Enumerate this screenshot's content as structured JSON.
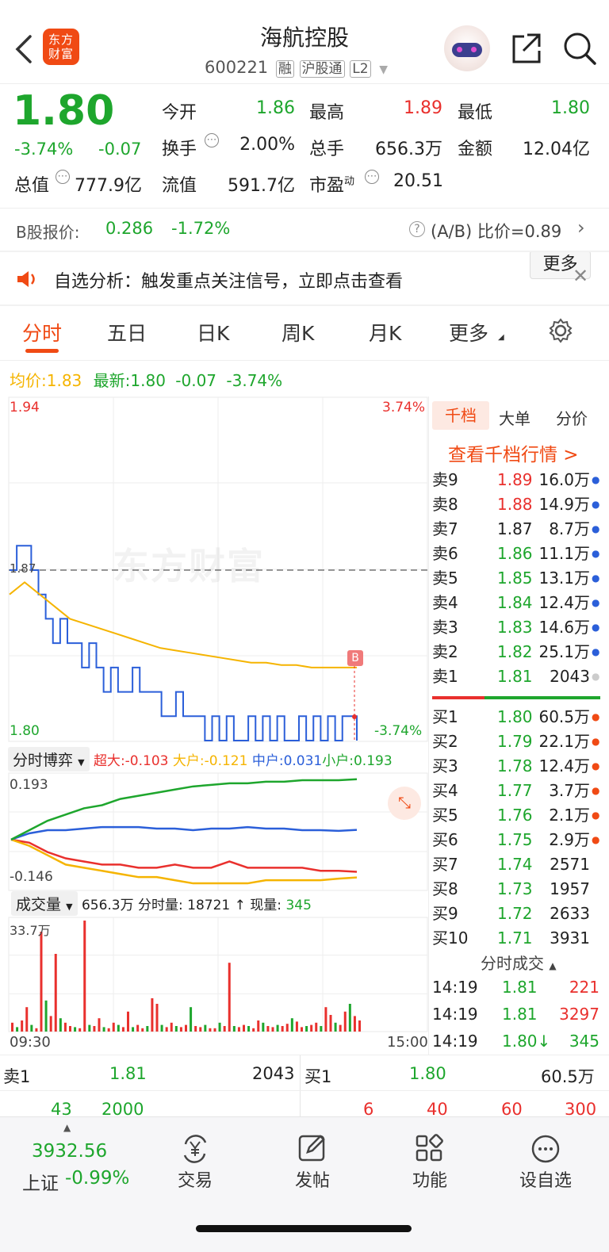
{
  "header": {
    "logo_text": "东方财富",
    "stock_name": "海航控股",
    "stock_code": "600221",
    "tags": [
      "融",
      "沪股通",
      "L2"
    ]
  },
  "quote": {
    "price": "1.80",
    "change_pct": "-3.74%",
    "change": "-0.07",
    "fields": [
      {
        "label": "今开",
        "value": "1.86",
        "color": "green"
      },
      {
        "label": "最高",
        "value": "1.89",
        "color": "red"
      },
      {
        "label": "最低",
        "value": "1.80",
        "color": "green"
      },
      {
        "label": "换手",
        "value": "2.00%",
        "color": "black"
      },
      {
        "label": "总手",
        "value": "656.3万",
        "color": "black"
      },
      {
        "label": "金额",
        "value": "12.04亿",
        "color": "black"
      },
      {
        "label": "总值",
        "value": "777.9亿",
        "color": "black"
      },
      {
        "label": "流值",
        "value": "591.7亿",
        "color": "black"
      },
      {
        "label": "市盈",
        "value": "20.51",
        "color": "black"
      }
    ],
    "pe_sup": "动",
    "more_label": "更多"
  },
  "b_share": {
    "label": "B股报价:",
    "price": "0.286",
    "change": "-1.72%",
    "ratio": "(A/B) 比价=0.89"
  },
  "notice": {
    "text": "自选分析：触发重点关注信号，立即点击查看"
  },
  "tabs": [
    "分时",
    "五日",
    "日K",
    "周K",
    "月K",
    "更多"
  ],
  "active_tab": 0,
  "summary": {
    "avg_label": "均价:",
    "avg": "1.83",
    "latest_label": "最新:",
    "latest": "1.80",
    "change": "-0.07",
    "change_pct": "-3.74%"
  },
  "chart_data": [
    {
      "type": "line",
      "title": "分时",
      "y_left_top": "1.94",
      "y_left_bottom": "1.80",
      "y_right_top": "3.74%",
      "y_right_bottom": "-3.74%",
      "ref_label": "1.87",
      "watermark": "东方财富",
      "marker": "B",
      "series": [
        {
          "name": "价格",
          "color": "#2b5fd9",
          "values": [
            1.87,
            1.88,
            1.88,
            1.87,
            1.86,
            1.85,
            1.84,
            1.85,
            1.84,
            1.84,
            1.83,
            1.84,
            1.83,
            1.82,
            1.83,
            1.82,
            1.82,
            1.83,
            1.82,
            1.82,
            1.82,
            1.81,
            1.81,
            1.82,
            1.81,
            1.81,
            1.81,
            1.8,
            1.81,
            1.8,
            1.81,
            1.8,
            1.8,
            1.81,
            1.8,
            1.81,
            1.8,
            1.81,
            1.8,
            1.8,
            1.81,
            1.8,
            1.81,
            1.8,
            1.81,
            1.8,
            1.81,
            1.81,
            1.8
          ]
        },
        {
          "name": "均价",
          "color": "#f5b400",
          "values": [
            1.86,
            1.865,
            1.86,
            1.855,
            1.85,
            1.848,
            1.846,
            1.844,
            1.842,
            1.84,
            1.838,
            1.837,
            1.836,
            1.835,
            1.834,
            1.833,
            1.832,
            1.832,
            1.831,
            1.831,
            1.83,
            1.83,
            1.83,
            1.83
          ]
        }
      ]
    },
    {
      "type": "line",
      "title": "分时博弈",
      "yticks": [
        "0.193",
        "-0.146"
      ],
      "series": [
        {
          "name": "超大",
          "value": "-0.103",
          "color": "#e9302d",
          "values": [
            0,
            -0.01,
            -0.04,
            -0.06,
            -0.07,
            -0.08,
            -0.08,
            -0.09,
            -0.09,
            -0.08,
            -0.09,
            -0.09,
            -0.07,
            -0.09,
            -0.09,
            -0.09,
            -0.09,
            -0.1,
            -0.1,
            -0.103
          ]
        },
        {
          "name": "大户",
          "value": "-0.121",
          "color": "#f5b400",
          "values": [
            0,
            -0.02,
            -0.05,
            -0.08,
            -0.09,
            -0.1,
            -0.11,
            -0.12,
            -0.12,
            -0.13,
            -0.14,
            -0.14,
            -0.14,
            -0.14,
            -0.13,
            -0.13,
            -0.13,
            -0.13,
            -0.125,
            -0.121
          ]
        },
        {
          "name": "中户",
          "value": "0.031",
          "color": "#2b5fd9",
          "values": [
            0,
            0.02,
            0.03,
            0.03,
            0.035,
            0.04,
            0.04,
            0.04,
            0.035,
            0.035,
            0.03,
            0.035,
            0.035,
            0.04,
            0.035,
            0.035,
            0.03,
            0.03,
            0.028,
            0.031
          ]
        },
        {
          "name": "小户",
          "value": "0.193",
          "color": "#1ea62d",
          "values": [
            0,
            0.03,
            0.06,
            0.08,
            0.1,
            0.11,
            0.13,
            0.14,
            0.15,
            0.16,
            0.17,
            0.175,
            0.18,
            0.18,
            0.185,
            0.185,
            0.19,
            0.19,
            0.19,
            0.193
          ]
        }
      ]
    },
    {
      "type": "bar",
      "title": "成交量",
      "total": "656.3万",
      "period_label": "分时量:",
      "period": "18721",
      "now_label": "现量:",
      "now": "345",
      "ytop": "33.7万",
      "x_start": "09:30",
      "x_end": "15:00",
      "values": [
        8,
        4,
        10,
        22,
        6,
        3,
        90,
        28,
        14,
        70,
        12,
        8,
        5,
        4,
        3,
        100,
        6,
        5,
        12,
        4,
        3,
        8,
        6,
        4,
        18,
        4,
        6,
        3,
        5,
        30,
        25,
        6,
        4,
        8,
        5,
        4,
        6,
        22,
        5,
        4,
        6,
        3,
        3,
        8,
        5,
        62,
        5,
        4,
        6,
        5,
        3,
        10,
        8,
        5,
        4,
        6,
        5,
        7,
        12,
        9,
        4,
        5,
        6,
        8,
        5,
        22,
        15,
        8,
        6,
        18,
        25,
        14,
        10
      ]
    }
  ],
  "orderbook_tabs": [
    "千档",
    "大单",
    "分价"
  ],
  "orderbook_link": "查看千档行情 >",
  "asks": [
    {
      "label": "卖9",
      "price": "1.89",
      "vol": "16.0万",
      "pc": "red"
    },
    {
      "label": "卖8",
      "price": "1.88",
      "vol": "14.9万",
      "pc": "red"
    },
    {
      "label": "卖7",
      "price": "1.87",
      "vol": "8.7万",
      "pc": "black"
    },
    {
      "label": "卖6",
      "price": "1.86",
      "vol": "11.1万",
      "pc": "green"
    },
    {
      "label": "卖5",
      "price": "1.85",
      "vol": "13.1万",
      "pc": "green"
    },
    {
      "label": "卖4",
      "price": "1.84",
      "vol": "12.4万",
      "pc": "green"
    },
    {
      "label": "卖3",
      "price": "1.83",
      "vol": "14.6万",
      "pc": "green"
    },
    {
      "label": "卖2",
      "price": "1.82",
      "vol": "25.1万",
      "pc": "green"
    },
    {
      "label": "卖1",
      "price": "1.81",
      "vol": "2043",
      "pc": "green"
    }
  ],
  "bids": [
    {
      "label": "买1",
      "price": "1.80",
      "vol": "60.5万"
    },
    {
      "label": "买2",
      "price": "1.79",
      "vol": "22.1万"
    },
    {
      "label": "买3",
      "price": "1.78",
      "vol": "12.4万"
    },
    {
      "label": "买4",
      "price": "1.77",
      "vol": "3.7万"
    },
    {
      "label": "买5",
      "price": "1.76",
      "vol": "2.1万"
    },
    {
      "label": "买6",
      "price": "1.75",
      "vol": "2.9万"
    },
    {
      "label": "买7",
      "price": "1.74",
      "vol": "2571"
    },
    {
      "label": "买8",
      "price": "1.73",
      "vol": "1957"
    },
    {
      "label": "买9",
      "price": "1.72",
      "vol": "2633"
    },
    {
      "label": "买10",
      "price": "1.71",
      "vol": "3931"
    }
  ],
  "ticks_header": "分时成交",
  "ticks": [
    {
      "time": "14:19",
      "price": "1.81",
      "vol": "221",
      "vc": "red"
    },
    {
      "time": "14:19",
      "price": "1.81",
      "vol": "3297",
      "vc": "red"
    },
    {
      "time": "14:19",
      "price": "1.80↓",
      "vol": "345",
      "vc": "green"
    }
  ],
  "level1": {
    "sell_label": "卖1",
    "sell_price": "1.81",
    "sell_vol": "2043",
    "buy_label": "买1",
    "buy_price": "1.80",
    "buy_vol": "60.5万",
    "sell_queue": [
      "43",
      "2000"
    ],
    "buy_queue": [
      "6",
      "40",
      "60",
      "300"
    ]
  },
  "index": {
    "value": "3932.56",
    "name": "上证",
    "change": "-0.99%"
  },
  "nav": [
    {
      "label": "交易",
      "icon": "yen-exchange-icon"
    },
    {
      "label": "发帖",
      "icon": "edit-icon"
    },
    {
      "label": "功能",
      "icon": "grid-icon"
    },
    {
      "label": "设自选",
      "icon": "more-dots-icon"
    }
  ],
  "colors": {
    "red": "#e9302d",
    "green": "#1ea62d",
    "blue": "#2b5fd9",
    "yellow": "#f5b400",
    "accent": "#f04a14"
  }
}
